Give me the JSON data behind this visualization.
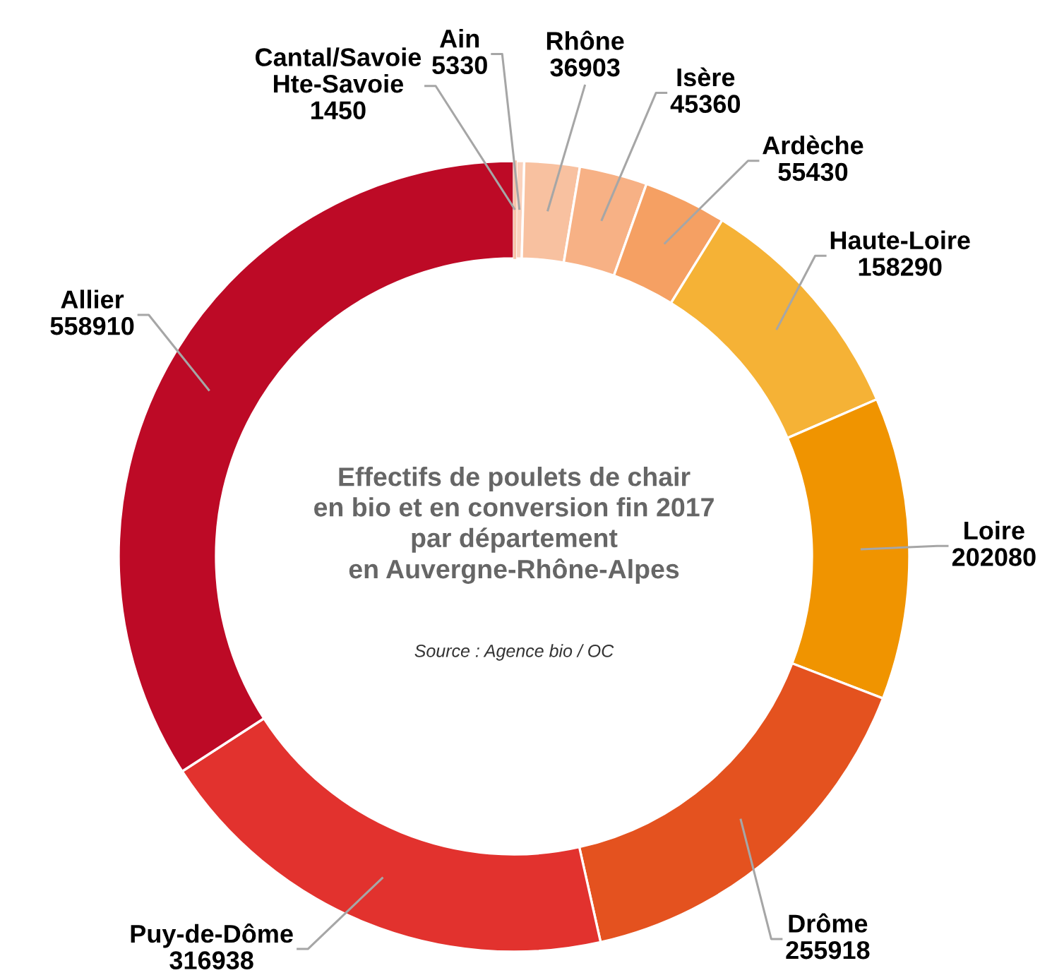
{
  "chart_data": {
    "type": "donut",
    "title": "Effectifs de poulets de chair\nen bio et en conversion fin 2017\npar département\nen Auvergne-Rhône-Alpes",
    "categories": [
      "Cantal/Savoie Hte-Savoie",
      "Ain",
      "Rhône",
      "Isère",
      "Ardèche",
      "Haute-Loire",
      "Loire",
      "Drôme",
      "Puy-de-Dôme",
      "Allier"
    ],
    "values": [
      1450,
      5330,
      36903,
      45360,
      55430,
      158290,
      202080,
      255918,
      316938,
      558910
    ],
    "colors": [
      "#f6c4aa",
      "#fad2bd",
      "#f8c1a0",
      "#f7b185",
      "#f5a063",
      "#f5b236",
      "#f09400",
      "#e4521f",
      "#e2322e",
      "#bd0a26"
    ],
    "data_labels": true,
    "annotations": [
      "Source : Agence bio / OC"
    ]
  }
}
